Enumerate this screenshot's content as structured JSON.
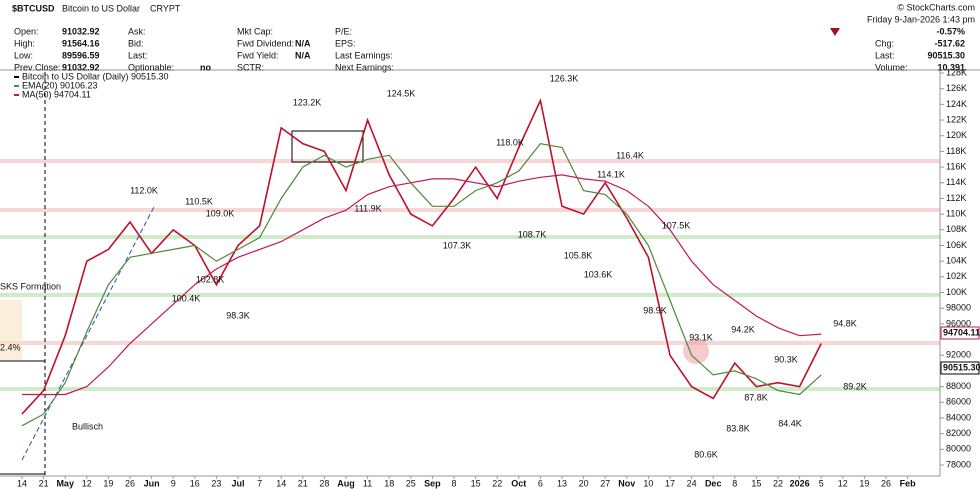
{
  "header": {
    "title": "$BTCUSD",
    "subtitle": "Bitcoin to US Dollar",
    "exchange": "CRYPT",
    "copyright": "© StockCharts.com",
    "date": "Friday   9-Jan-2026  1:43 pm",
    "change_pct": "-0.57%",
    "stats": [
      [
        "Chg:",
        "-517.62"
      ],
      [
        "Last:",
        "90515.30"
      ],
      [
        "Volume:",
        "10,391"
      ]
    ],
    "grid": [
      [
        [
          "Open:",
          "91032.92"
        ],
        [
          "Ask:"
        ],
        [
          "Mkt Cap:"
        ],
        [
          "P/E:"
        ]
      ],
      [
        [
          "High:",
          "91564.16"
        ],
        [
          "Bid:"
        ],
        [
          "Fwd Dividend:",
          "N/A"
        ],
        [
          "EPS:"
        ]
      ],
      [
        [
          "Low:",
          "89596.59"
        ],
        [
          "Last:"
        ],
        [
          "Fwd Yield:",
          "N/A"
        ],
        [
          "Last Earnings:"
        ]
      ],
      [
        [
          "Prev Close:",
          "91032.92"
        ],
        [
          "Optionable:",
          "no"
        ],
        [
          "SCTR:"
        ],
        [
          "Next Earnings:"
        ]
      ]
    ]
  },
  "chart_data": {
    "type": "line",
    "categories": [
      "14",
      "21",
      "May",
      "12",
      "19",
      "26",
      "Jun",
      "9",
      "16",
      "23",
      "Jul",
      "7",
      "14",
      "21",
      "28",
      "Aug",
      "11",
      "18",
      "25",
      "Sep",
      "8",
      "15",
      "22",
      "Oct",
      "6",
      "13",
      "20",
      "27",
      "Nov",
      "10",
      "17",
      "24",
      "Dec",
      "8",
      "15",
      "22",
      "2026",
      "5",
      "12",
      "19",
      "26",
      "Feb"
    ],
    "series": [
      {
        "name": "Bitcoin to US Dollar (Daily) 90515.30",
        "color": "#c0102a",
        "values": [
          84500,
          87500,
          94500,
          104000,
          105500,
          109000,
          105000,
          108000,
          106000,
          101000,
          106000,
          108500,
          121000,
          119000,
          118000,
          113000,
          122000,
          115000,
          110000,
          108500,
          112000,
          116000,
          112000,
          118500,
          124500,
          111000,
          110000,
          114000,
          109500,
          104500,
          92000,
          88000,
          86500,
          91000,
          88000,
          88500,
          88000,
          93500,
          null,
          null,
          null,
          null
        ]
      },
      {
        "name": "EMA(20) 90106.23",
        "color": "#4a8a3a",
        "values": [
          83000,
          84500,
          88500,
          95000,
          101000,
          104500,
          105000,
          105500,
          106000,
          104000,
          105500,
          107000,
          112000,
          116000,
          117500,
          116000,
          117000,
          117500,
          114000,
          111000,
          111000,
          113000,
          114000,
          115500,
          119000,
          118500,
          113000,
          112500,
          110000,
          106000,
          99000,
          92000,
          89500,
          90000,
          89000,
          87500,
          87000,
          89500,
          null,
          null,
          null,
          null
        ]
      },
      {
        "name": "MA(50) 94704.11",
        "color": "#c2185b",
        "values": [
          87000,
          87000,
          87000,
          88000,
          90500,
          93500,
          96000,
          98500,
          101000,
          103000,
          104500,
          105500,
          106500,
          108000,
          109500,
          110500,
          112500,
          113500,
          114000,
          114500,
          114500,
          114000,
          113500,
          114200,
          114700,
          115000,
          114500,
          114200,
          113000,
          111000,
          108000,
          104000,
          101000,
          99000,
          97000,
          95500,
          94500,
          94700,
          null,
          null,
          null,
          null
        ]
      }
    ],
    "price_labels": [
      "94704.11",
      "90515.30"
    ],
    "ylim": [
      76600,
      128640
    ],
    "yticks": [
      {
        "value": 128000,
        "label": "128K"
      },
      {
        "value": 126000,
        "label": "126K"
      },
      {
        "value": 124000,
        "label": "124K"
      },
      {
        "value": 122000,
        "label": "122K"
      },
      {
        "value": 120000,
        "label": "120K"
      },
      {
        "value": 118000,
        "label": "118K"
      },
      {
        "value": 116000,
        "label": "116K"
      },
      {
        "value": 114000,
        "label": "114K"
      },
      {
        "value": 112000,
        "label": "112K"
      },
      {
        "value": 110000,
        "label": "110K"
      },
      {
        "value": 108000,
        "label": "108K"
      },
      {
        "value": 106000,
        "label": "106K"
      },
      {
        "value": 104000,
        "label": "104K"
      },
      {
        "value": 102000,
        "label": "102K"
      },
      {
        "value": 100000,
        "label": "100K"
      },
      98000,
      96000,
      92000,
      88000,
      86000,
      84000,
      82000,
      80000,
      78000
    ],
    "annotations": [
      "123.2K",
      "124.5K",
      "126.3K",
      "112.0K",
      "110.5K",
      "109.0K",
      "102.8K",
      "100.4K",
      "98.3K",
      "111.9K",
      "107.3K",
      "108.7K",
      "118.0K",
      "116.4K",
      "114.1K",
      "105.8K",
      "103.6K",
      "107.5K",
      "98.9K",
      "94.2K",
      "93.1K",
      "90.3K",
      "87.8K",
      "83.8K",
      "84.4K",
      "80.6K",
      "94.8K",
      "89.2K"
    ],
    "notes": [
      "SKS Formation",
      "2.4%",
      "Bullisch"
    ]
  }
}
